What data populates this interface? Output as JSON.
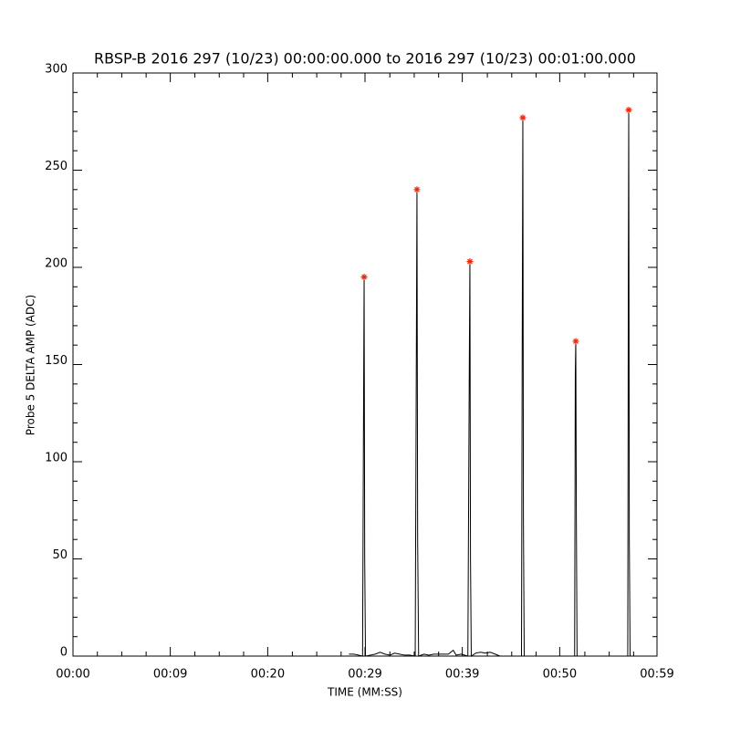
{
  "chart_data": {
    "type": "line",
    "title": "RBSP-B 2016 297 (10/23) 00:00:00.000 to 2016 297 (10/23) 00:01:00.000",
    "x_label": "TIME (MM:SS)",
    "y_label": "Probe 5 DELTA AMP (ADC)",
    "xlim": [
      0,
      59.9
    ],
    "ylim": [
      0,
      300
    ],
    "xticks": [
      {
        "value": 0,
        "label": "00:00"
      },
      {
        "value": 9.98,
        "label": "00:09"
      },
      {
        "value": 19.97,
        "label": "00:20"
      },
      {
        "value": 29.95,
        "label": "00:29"
      },
      {
        "value": 39.93,
        "label": "00:39"
      },
      {
        "value": 49.92,
        "label": "00:50"
      },
      {
        "value": 59.9,
        "label": "00:59"
      }
    ],
    "xminorticks": [
      2.5,
      5,
      7.5,
      12.5,
      15,
      17.5,
      22.5,
      25,
      27.5,
      32.5,
      35,
      37.5,
      42.5,
      45,
      47.5,
      52.5,
      55,
      57.5
    ],
    "yticks": [
      0,
      50,
      100,
      150,
      200,
      250,
      300
    ],
    "yminorticks": [
      10,
      20,
      30,
      40,
      60,
      70,
      80,
      90,
      110,
      120,
      130,
      140,
      160,
      170,
      180,
      190,
      210,
      220,
      230,
      240,
      260,
      270,
      280,
      290
    ],
    "color": "#000000",
    "x": [
      28.3,
      28.8,
      29.3,
      29.7,
      29.8,
      29.86,
      29.92,
      30.0,
      30.5,
      31,
      31.5,
      32,
      32.5,
      33,
      33.5,
      34,
      34.5,
      35.1,
      35.2,
      35.28,
      35.35,
      35.45,
      36,
      36.5,
      37,
      37.5,
      38,
      38.5,
      39,
      39.3,
      39.8,
      40.5,
      40.65,
      40.71,
      40.77,
      40.85,
      41.3,
      41.8,
      42.3,
      42.8,
      43.3,
      43.8,
      46.0,
      46.08,
      46.14,
      46.2,
      46.28,
      51.45,
      51.52,
      51.57,
      51.63,
      51.7,
      56.9,
      56.96,
      57.0,
      57.06,
      57.14
    ],
    "values": [
      1,
      1,
      0.5,
      0,
      125,
      195,
      50,
      0,
      0.5,
      1,
      2,
      1,
      0.5,
      1.5,
      1,
      0.5,
      0.5,
      0,
      132,
      240,
      60,
      0,
      1,
      0.5,
      1,
      1,
      1,
      1,
      3,
      0.5,
      1,
      0,
      150,
      203,
      50,
      0,
      1.5,
      2,
      1.5,
      2,
      1,
      0,
      0,
      170,
      277,
      70,
      0,
      0,
      145,
      162,
      70,
      0,
      0,
      200,
      281,
      60,
      0
    ],
    "peaks": {
      "color": "#ff2000",
      "x": [
        29.86,
        35.28,
        40.71,
        46.14,
        51.57,
        57.0
      ],
      "values": [
        195,
        240,
        203,
        277,
        162,
        281
      ]
    }
  }
}
